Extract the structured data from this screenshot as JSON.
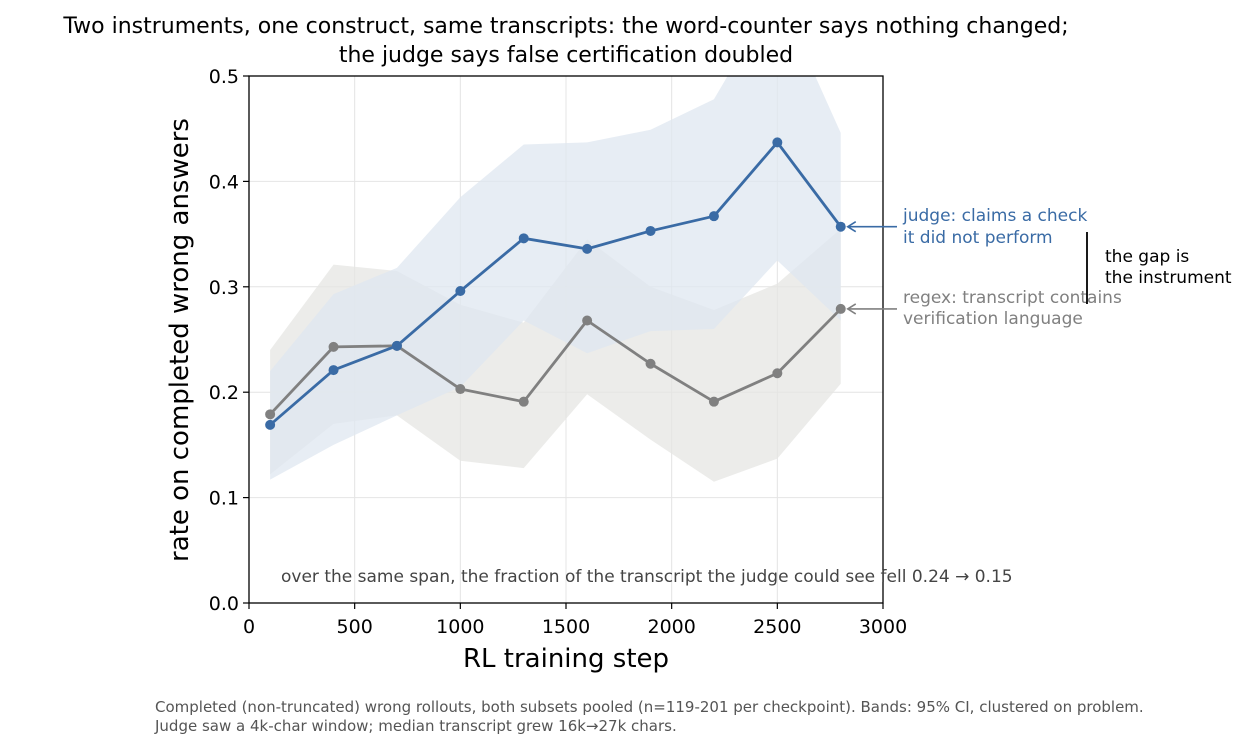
{
  "chart_data": {
    "type": "line",
    "title_lines": [
      "Two instruments, one construct, same transcripts: the word-counter says nothing changed;",
      "the judge says false certification doubled"
    ],
    "xlabel": "RL training step",
    "ylabel": "rate on completed wrong answers",
    "xlim": [
      0,
      3000
    ],
    "ylim": [
      0,
      0.5
    ],
    "xticks": [
      0,
      500,
      1000,
      1500,
      2000,
      2500,
      3000
    ],
    "xtick_labels": [
      "0",
      "500",
      "1000",
      "1500",
      "2000",
      "2500",
      "3000"
    ],
    "yticks": [
      0,
      0.1,
      0.2,
      0.3,
      0.4,
      0.5
    ],
    "ytick_labels": [
      "0.0",
      "0.1",
      "0.2",
      "0.3",
      "0.4",
      "0.5"
    ],
    "grid": true,
    "x": [
      100,
      400,
      700,
      1000,
      1300,
      1600,
      1900,
      2200,
      2500,
      2800
    ],
    "series": [
      {
        "key": "judge",
        "color": "#3a6ba5",
        "band_color": "#dfe7f0",
        "values": [
          0.169,
          0.221,
          0.244,
          0.296,
          0.346,
          0.336,
          0.353,
          0.367,
          0.437,
          0.357
        ],
        "ci_lower": [
          0.117,
          0.15,
          0.178,
          0.205,
          0.268,
          0.237,
          0.258,
          0.26,
          0.325,
          0.268
        ],
        "ci_upper": [
          0.22,
          0.293,
          0.318,
          0.385,
          0.435,
          0.437,
          0.449,
          0.478,
          0.58,
          0.446
        ],
        "annotation": [
          "judge: claims a check",
          "it did not perform"
        ]
      },
      {
        "key": "regex",
        "color": "#808080",
        "band_color": "#e6e6e3",
        "values": [
          0.179,
          0.243,
          0.244,
          0.203,
          0.191,
          0.268,
          0.227,
          0.191,
          0.218,
          0.279
        ],
        "ci_lower": [
          0.122,
          0.17,
          0.178,
          0.135,
          0.128,
          0.198,
          0.155,
          0.115,
          0.137,
          0.208
        ],
        "ci_upper": [
          0.24,
          0.321,
          0.315,
          0.283,
          0.266,
          0.345,
          0.3,
          0.278,
          0.303,
          0.355
        ],
        "annotation": [
          "regex: transcript contains",
          "verification language"
        ]
      }
    ],
    "gap_annotation": [
      "the gap is",
      "the instrument"
    ],
    "inner_note": "over the same span, the fraction of the transcript the judge could see fell 0.24 → 0.15"
  },
  "caption": {
    "line1": "Completed (non-truncated) wrong rollouts, both subsets pooled (n=119-201 per checkpoint). Bands: 95% CI, clustered on problem.",
    "line2": "Judge saw a 4k-char window; median transcript grew 16k→27k chars."
  }
}
